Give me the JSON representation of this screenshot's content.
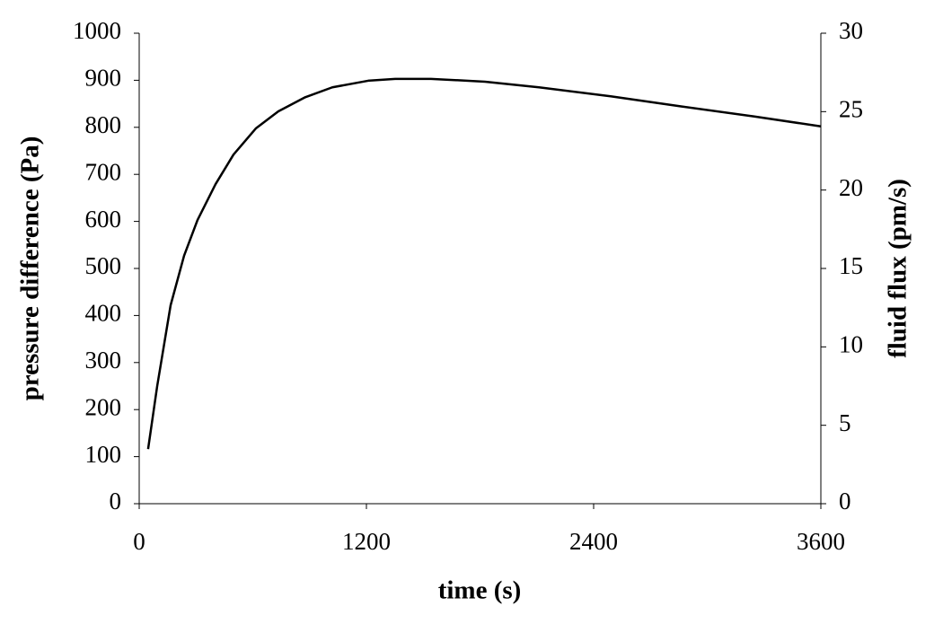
{
  "chart_data": {
    "type": "line",
    "xlabel": "time (s)",
    "ylabel": "pressure difference (Pa)",
    "y2label": "fluid flux (pm/s)",
    "x": [
      47,
      95,
      166,
      237,
      308,
      403,
      498,
      617,
      735,
      877,
      1020,
      1209,
      1352,
      1541,
      1826,
      2111,
      2490,
      2870,
      3249,
      3600
    ],
    "values": [
      116,
      250,
      422,
      527,
      603,
      679,
      742,
      798,
      834,
      864,
      885,
      899,
      903,
      903,
      897,
      885,
      866,
      844,
      823,
      802
    ],
    "color": "#000000",
    "xlim": [
      0,
      3600
    ],
    "xticks": [
      0,
      1200,
      2400,
      3600
    ],
    "ylim": [
      0,
      1000
    ],
    "yticks": [
      0,
      100,
      200,
      300,
      400,
      500,
      600,
      700,
      800,
      900,
      1000
    ],
    "y2lim": [
      0,
      30
    ],
    "y2ticks": [
      0,
      5,
      10,
      15,
      20,
      25,
      30
    ],
    "grid": false
  }
}
